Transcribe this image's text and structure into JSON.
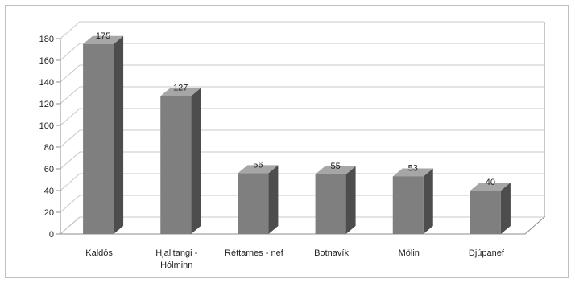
{
  "chart_data": {
    "type": "bar",
    "style": "3d-column",
    "categories": [
      [
        "Kaldós"
      ],
      [
        "Hjalltangi -",
        "Hólminn"
      ],
      [
        "Réttarnes - nef"
      ],
      [
        "Botnavík"
      ],
      [
        "Mölin"
      ],
      [
        "Djúpanef"
      ]
    ],
    "values": [
      175,
      127,
      56,
      55,
      53,
      40
    ],
    "yticks": [
      0,
      20,
      40,
      60,
      80,
      100,
      120,
      140,
      160,
      180
    ],
    "ylim": [
      0,
      180
    ],
    "grid": true,
    "legend": "none",
    "colors": {
      "bar_front": "#7f7f7f",
      "bar_side": "#4d4d4d",
      "bar_top": "#a6a6a6",
      "grid": "#c8c8c8",
      "axis": "#8c8c8c"
    }
  }
}
